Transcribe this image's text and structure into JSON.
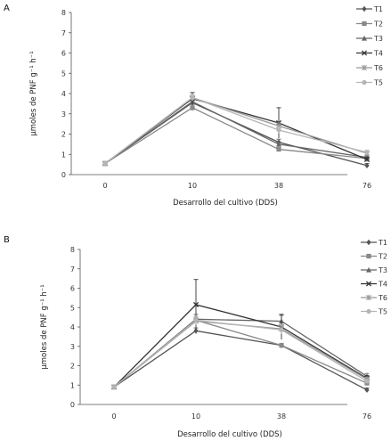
{
  "chart_data": [
    {
      "type": "line",
      "panel_label": "A",
      "xlabel": "Desarrollo del cultivo (DDS)",
      "ylabel": "µmoles de PNF g⁻¹ h⁻¹",
      "categories": [
        "0",
        "10",
        "38",
        "76"
      ],
      "ylim": [
        0,
        8
      ],
      "yticks": [
        "0",
        "1",
        "2",
        "3",
        "4",
        "5",
        "6",
        "7",
        "8"
      ],
      "legend_position": "right",
      "series": [
        {
          "name": "T1",
          "values": [
            0.55,
            3.55,
            1.6,
            0.45
          ],
          "errors": [
            0.05,
            0.25,
            0.15,
            0.1
          ],
          "color": "#555555",
          "marker": "diamond"
        },
        {
          "name": "T2",
          "values": [
            0.55,
            3.3,
            1.25,
            0.8
          ],
          "errors": [
            0.05,
            0.15,
            0.1,
            0.1
          ],
          "color": "#888888",
          "marker": "square"
        },
        {
          "name": "T3",
          "values": [
            0.55,
            3.6,
            1.5,
            0.85
          ],
          "errors": [
            0.05,
            0.2,
            0.1,
            0.1
          ],
          "color": "#666666",
          "marker": "triangle"
        },
        {
          "name": "T4",
          "values": [
            0.55,
            3.75,
            2.55,
            0.75
          ],
          "errors": [
            0.05,
            0.3,
            0.75,
            0.1
          ],
          "color": "#333333",
          "marker": "x"
        },
        {
          "name": "T6",
          "values": [
            0.55,
            3.8,
            2.4,
            1.05
          ],
          "errors": [
            0.05,
            0.15,
            0.15,
            0.1
          ],
          "color": "#999999",
          "marker": "star"
        },
        {
          "name": "T5",
          "values": [
            0.55,
            3.8,
            2.2,
            1.1
          ],
          "errors": [
            0.05,
            0.15,
            0.15,
            0.1
          ],
          "color": "#b5b5b5",
          "marker": "circle"
        }
      ]
    },
    {
      "type": "line",
      "panel_label": "B",
      "xlabel": "Desarrollo del cultivo (DDS)",
      "ylabel": "µmoles de PNF g⁻¹ h⁻¹",
      "categories": [
        "0",
        "10",
        "38",
        "76"
      ],
      "ylim": [
        0,
        8
      ],
      "yticks": [
        "0",
        "1",
        "2",
        "3",
        "4",
        "5",
        "6",
        "7",
        "8"
      ],
      "legend_position": "right",
      "series": [
        {
          "name": "T1",
          "values": [
            0.9,
            3.8,
            3.05,
            0.75
          ],
          "errors": [
            0.05,
            0.15,
            0.1,
            0.1
          ],
          "color": "#555555",
          "marker": "diamond"
        },
        {
          "name": "T2",
          "values": [
            0.9,
            4.35,
            3.05,
            1.1
          ],
          "errors": [
            0.05,
            0.2,
            0.1,
            0.1
          ],
          "color": "#888888",
          "marker": "square"
        },
        {
          "name": "T3",
          "values": [
            0.9,
            4.4,
            4.3,
            1.45
          ],
          "errors": [
            0.05,
            0.25,
            0.3,
            0.15
          ],
          "color": "#666666",
          "marker": "triangle"
        },
        {
          "name": "T4",
          "values": [
            0.9,
            5.15,
            4.0,
            1.35
          ],
          "errors": [
            0.05,
            1.3,
            0.65,
            0.15
          ],
          "color": "#333333",
          "marker": "x"
        },
        {
          "name": "T6",
          "values": [
            0.9,
            4.3,
            3.9,
            1.3
          ],
          "errors": [
            0.05,
            0.2,
            0.2,
            0.1
          ],
          "color": "#999999",
          "marker": "star"
        },
        {
          "name": "T5",
          "values": [
            0.9,
            4.35,
            3.85,
            1.2
          ],
          "errors": [
            0.05,
            0.2,
            0.2,
            0.1
          ],
          "color": "#b5b5b5",
          "marker": "circle"
        }
      ]
    }
  ]
}
